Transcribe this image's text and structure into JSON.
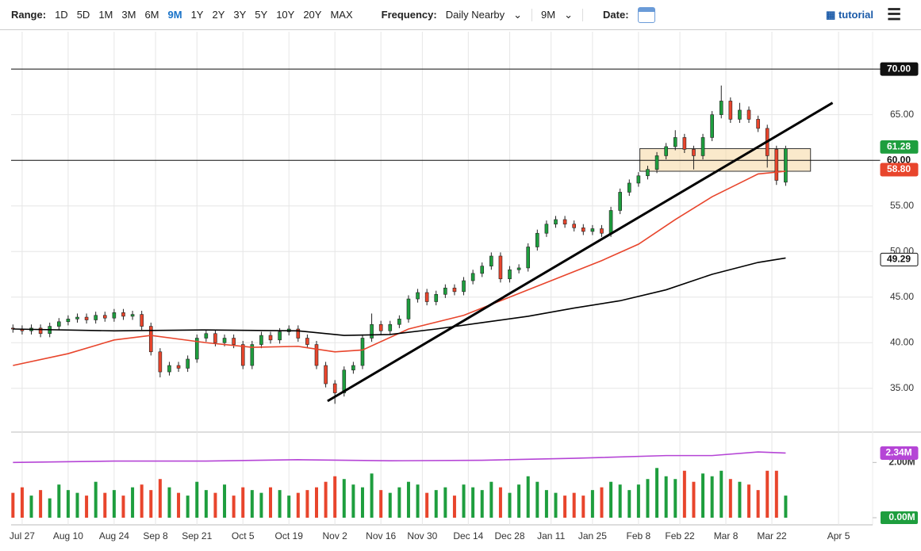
{
  "toolbar": {
    "range_label": "Range:",
    "ranges": [
      "1D",
      "5D",
      "1M",
      "3M",
      "6M",
      "9M",
      "1Y",
      "2Y",
      "3Y",
      "5Y",
      "10Y",
      "20Y",
      "MAX"
    ],
    "active_range": "9M",
    "frequency_label": "Frequency:",
    "frequency": "Daily Nearby",
    "period": "9M",
    "date_label": "Date:",
    "tutorial": "tutorial"
  },
  "chart_data": {
    "type": "candlestick",
    "x": [
      -2,
      0,
      2,
      4,
      6,
      8,
      10,
      12,
      14,
      16,
      18,
      20,
      22,
      24,
      26,
      28,
      30,
      32,
      34,
      36,
      38,
      40,
      42,
      44,
      46,
      48,
      50,
      52,
      54,
      56,
      58,
      60,
      62,
      64,
      66,
      68,
      70,
      72,
      74,
      76,
      78,
      80,
      82,
      84,
      86,
      88,
      90,
      92,
      94,
      96,
      98,
      100,
      102,
      104,
      106,
      108,
      110,
      112,
      114,
      116,
      118,
      120,
      122,
      124,
      126,
      128,
      130,
      132,
      134,
      136,
      138,
      140,
      142,
      144,
      146,
      148,
      150,
      152,
      154,
      156,
      158,
      160,
      162,
      164,
      166
    ],
    "open": [
      41.6,
      41.5,
      41.3,
      41.6,
      41.0,
      41.8,
      42.3,
      42.6,
      42.8,
      42.5,
      43.0,
      42.7,
      43.3,
      42.9,
      43.1,
      41.8,
      39.0,
      36.8,
      37.5,
      37.2,
      38.2,
      40.5,
      41.0,
      40.0,
      40.5,
      39.8,
      37.5,
      39.8,
      40.8,
      40.3,
      41.2,
      41.5,
      40.5,
      39.8,
      37.5,
      35.5,
      34.5,
      37.0,
      37.5,
      40.5,
      42.0,
      41.3,
      42.0,
      42.6,
      44.8,
      45.5,
      44.5,
      45.3,
      46.0,
      45.6,
      46.8,
      47.6,
      48.4,
      49.5,
      47.0,
      48.0,
      48.2,
      50.5,
      52.0,
      53.0,
      53.5,
      53.0,
      52.6,
      52.2,
      52.5,
      52.0,
      54.5,
      56.5,
      57.5,
      58.3,
      59.0,
      60.5,
      61.5,
      62.5,
      61.2,
      60.5,
      62.5,
      65.0,
      66.5,
      64.5,
      65.5,
      64.5,
      63.5,
      61.2,
      57.6
    ],
    "high": [
      42.0,
      41.9,
      42.0,
      42.0,
      42.2,
      42.7,
      43.0,
      43.2,
      43.2,
      43.4,
      43.4,
      43.7,
      43.7,
      43.5,
      43.5,
      42.2,
      39.4,
      37.9,
      37.9,
      38.6,
      40.9,
      41.4,
      41.4,
      40.9,
      40.9,
      40.2,
      40.2,
      41.2,
      41.2,
      41.6,
      41.9,
      41.9,
      40.9,
      40.2,
      37.9,
      35.9,
      37.4,
      37.9,
      40.9,
      43.2,
      42.4,
      42.4,
      43.0,
      45.2,
      45.9,
      45.9,
      45.7,
      46.4,
      46.4,
      47.2,
      48.0,
      48.8,
      49.9,
      49.9,
      48.4,
      48.6,
      50.9,
      52.4,
      53.4,
      53.9,
      53.9,
      53.4,
      53.0,
      52.9,
      52.9,
      54.9,
      56.9,
      57.9,
      58.7,
      59.4,
      60.9,
      61.9,
      63.3,
      62.9,
      61.6,
      62.9,
      65.4,
      68.2,
      66.9,
      66.3,
      65.9,
      64.9,
      63.9,
      61.6,
      61.6
    ],
    "low": [
      41.1,
      40.9,
      40.9,
      40.6,
      40.6,
      41.4,
      41.9,
      42.2,
      42.1,
      42.1,
      42.3,
      42.3,
      42.5,
      42.5,
      41.4,
      38.6,
      36.2,
      36.4,
      36.8,
      36.8,
      37.8,
      40.1,
      39.6,
      39.6,
      39.4,
      37.1,
      37.1,
      39.4,
      39.9,
      39.9,
      40.8,
      40.1,
      39.4,
      37.1,
      35.1,
      33.3,
      34.1,
      36.6,
      37.1,
      40.1,
      40.9,
      40.9,
      41.6,
      42.2,
      44.4,
      44.1,
      44.1,
      44.9,
      45.2,
      45.2,
      46.4,
      47.2,
      48.0,
      46.6,
      46.6,
      47.6,
      47.8,
      50.1,
      51.6,
      52.6,
      52.6,
      52.2,
      51.8,
      51.8,
      51.6,
      51.6,
      54.1,
      56.1,
      57.1,
      57.9,
      58.6,
      60.1,
      61.1,
      60.8,
      59.0,
      60.1,
      62.1,
      64.6,
      64.1,
      64.1,
      64.1,
      63.1,
      59.2,
      57.3,
      57.2
    ],
    "close": [
      41.5,
      41.3,
      41.6,
      41.0,
      41.8,
      42.3,
      42.6,
      42.8,
      42.5,
      43.0,
      42.7,
      43.3,
      42.9,
      43.1,
      41.8,
      39.0,
      36.8,
      37.5,
      37.2,
      38.2,
      40.5,
      41.0,
      40.0,
      40.5,
      39.8,
      37.5,
      39.8,
      40.8,
      40.3,
      41.2,
      41.5,
      40.5,
      39.8,
      37.5,
      35.5,
      34.5,
      37.0,
      37.5,
      40.5,
      42.0,
      41.3,
      42.0,
      42.6,
      44.8,
      45.5,
      44.5,
      45.3,
      46.0,
      45.6,
      46.8,
      47.6,
      48.4,
      49.5,
      47.0,
      48.0,
      48.2,
      50.5,
      52.0,
      53.0,
      53.5,
      53.0,
      52.6,
      52.2,
      52.5,
      52.0,
      54.5,
      56.5,
      57.5,
      58.3,
      59.0,
      60.5,
      61.5,
      62.5,
      61.2,
      60.5,
      62.5,
      65.0,
      66.5,
      64.5,
      65.5,
      64.5,
      63.5,
      60.5,
      57.8,
      61.28
    ],
    "volume": [
      0.9,
      1.1,
      0.8,
      1.0,
      0.7,
      1.2,
      1.0,
      0.9,
      0.8,
      1.3,
      0.9,
      1.0,
      0.8,
      1.1,
      1.2,
      1.0,
      1.4,
      1.1,
      0.9,
      0.8,
      1.3,
      1.0,
      0.9,
      1.2,
      0.8,
      1.1,
      1.0,
      0.9,
      1.1,
      1.0,
      0.8,
      0.9,
      1.0,
      1.1,
      1.3,
      1.5,
      1.4,
      1.2,
      1.1,
      1.6,
      1.0,
      0.9,
      1.1,
      1.3,
      1.2,
      0.9,
      1.0,
      1.1,
      0.8,
      1.2,
      1.1,
      1.0,
      1.3,
      1.1,
      0.9,
      1.2,
      1.5,
      1.3,
      1.0,
      0.9,
      0.8,
      0.9,
      0.8,
      1.0,
      1.1,
      1.3,
      1.2,
      1.0,
      1.2,
      1.4,
      1.8,
      1.5,
      1.4,
      1.7,
      1.3,
      1.6,
      1.5,
      1.7,
      1.4,
      1.3,
      1.2,
      1.0,
      1.7,
      1.7,
      0.8
    ],
    "up_color": "#1e9e3e",
    "down_color": "#e8452c",
    "lines": [
      {
        "color": "#e8452c",
        "x": [
          -2,
          10,
          20,
          28,
          40,
          50,
          60,
          68,
          74,
          84,
          96,
          106,
          116,
          126,
          134,
          142,
          150,
          156,
          160,
          166
        ],
        "values": [
          37.5,
          38.8,
          40.3,
          40.8,
          40.0,
          39.5,
          39.6,
          39.0,
          39.2,
          41.5,
          43.0,
          45.0,
          47.0,
          49.0,
          50.8,
          53.5,
          56.0,
          57.5,
          58.5,
          58.8
        ],
        "end_label": "58.80"
      },
      {
        "color": "#000000",
        "x": [
          -2,
          20,
          40,
          60,
          70,
          80,
          90,
          100,
          110,
          120,
          130,
          140,
          150,
          160,
          166
        ],
        "values": [
          41.5,
          41.3,
          41.4,
          41.3,
          40.8,
          40.9,
          41.5,
          42.2,
          42.9,
          43.8,
          44.6,
          45.8,
          47.5,
          48.8,
          49.29
        ],
        "end_label": "49.29"
      }
    ],
    "volume_line": {
      "color": "#b545d6",
      "x": [
        -2,
        20,
        40,
        60,
        80,
        100,
        120,
        140,
        150,
        160,
        166
      ],
      "values": [
        2.0,
        2.05,
        2.05,
        2.1,
        2.06,
        2.08,
        2.15,
        2.25,
        2.25,
        2.38,
        2.34
      ],
      "end_label": "2.34M"
    },
    "hlines": [
      {
        "value": 70,
        "label": "70.00"
      },
      {
        "value": 60,
        "label": "60.00"
      }
    ],
    "trendline": {
      "x": [
        66.4,
        176.2
      ],
      "y": [
        33.6,
        66.3
      ]
    },
    "zone": {
      "x": [
        134.3,
        171.4
      ],
      "y": [
        58.8,
        61.28
      ]
    },
    "xlim": [
      -2.4,
      184.9
    ],
    "xticks": [
      {
        "value": 0,
        "label": "Jul 27"
      },
      {
        "value": 10,
        "label": "Aug 10"
      },
      {
        "value": 20,
        "label": "Aug 24"
      },
      {
        "value": 29,
        "label": "Sep 8"
      },
      {
        "value": 38,
        "label": "Sep 21"
      },
      {
        "value": 48,
        "label": "Oct 5"
      },
      {
        "value": 58,
        "label": "Oct 19"
      },
      {
        "value": 68,
        "label": "Nov 2"
      },
      {
        "value": 78,
        "label": "Nov 16"
      },
      {
        "value": 87,
        "label": "Nov 30"
      },
      {
        "value": 97,
        "label": "Dec 14"
      },
      {
        "value": 106,
        "label": "Dec 28"
      },
      {
        "value": 115,
        "label": "Jan 11"
      },
      {
        "value": 124,
        "label": "Jan 25"
      },
      {
        "value": 134,
        "label": "Feb 8"
      },
      {
        "value": 143,
        "label": "Feb 22"
      },
      {
        "value": 153,
        "label": "Mar 8"
      },
      {
        "value": 163,
        "label": "Mar 22"
      },
      {
        "value": 177.5,
        "label": "Apr 5"
      }
    ],
    "ylim": [
      30.2,
      74.1
    ],
    "yticks": [
      {
        "value": 35,
        "label": "35.00"
      },
      {
        "value": 40,
        "label": "40.00"
      },
      {
        "value": 45,
        "label": "45.00"
      },
      {
        "value": 50,
        "label": "50.00"
      },
      {
        "value": 55,
        "label": "55.00"
      },
      {
        "value": 60,
        "label": "60.00"
      },
      {
        "value": 65,
        "label": "65.00"
      },
      {
        "value": 70,
        "label": "70.00"
      }
    ],
    "vlim": [
      0,
      3.1
    ],
    "vticks": [
      {
        "value": 0,
        "label": "0.00M"
      },
      {
        "value": 2,
        "label": "2.00M"
      }
    ],
    "grid": true
  }
}
